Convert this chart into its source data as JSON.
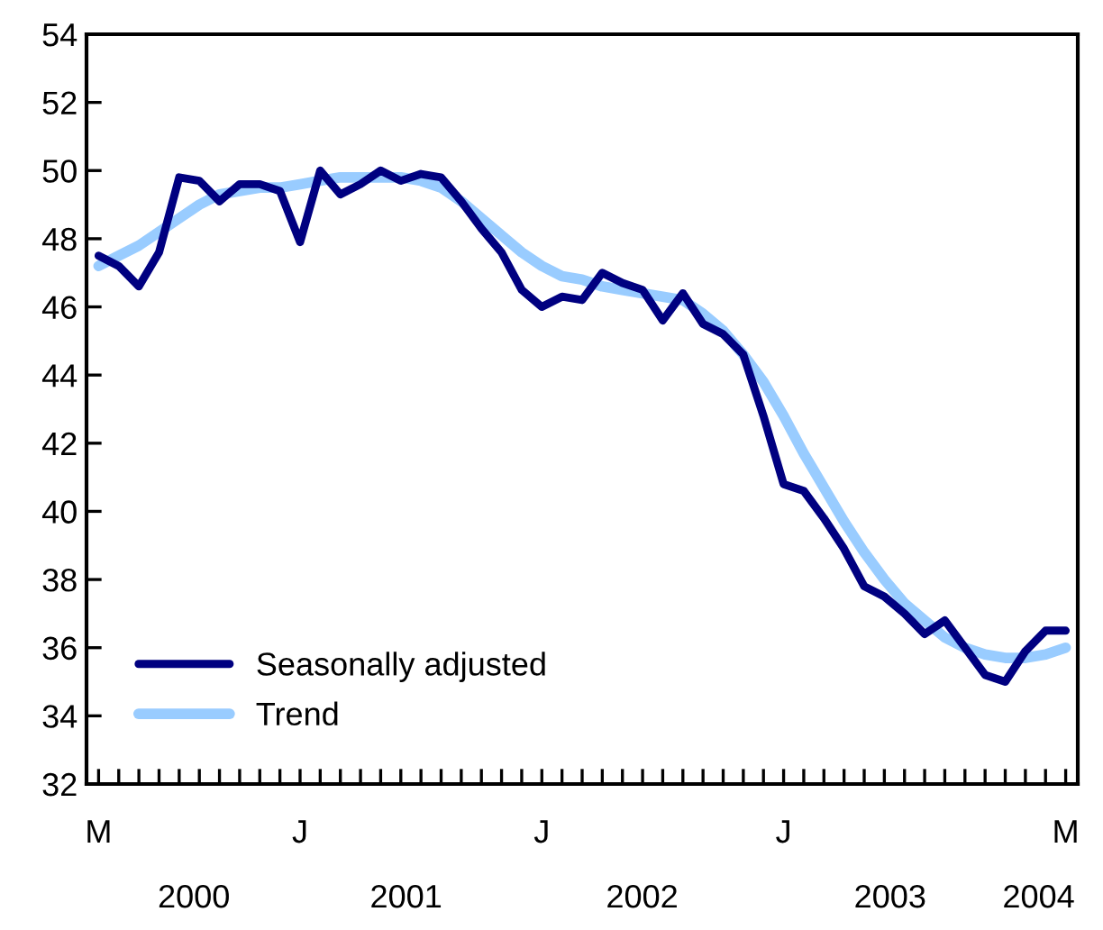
{
  "chart_data": {
    "type": "line",
    "categories": [
      "M",
      null,
      null,
      null,
      null,
      null,
      null,
      null,
      null,
      null,
      "J",
      null,
      null,
      null,
      null,
      null,
      null,
      null,
      null,
      null,
      null,
      null,
      "J",
      null,
      null,
      null,
      null,
      null,
      null,
      null,
      null,
      null,
      null,
      null,
      "J",
      null,
      null,
      null,
      null,
      null,
      null,
      null,
      null,
      null,
      null,
      null,
      null,
      null,
      "M"
    ],
    "series": [
      {
        "name": "Seasonally adjusted",
        "color": "#000080",
        "values": [
          47.5,
          47.2,
          46.6,
          47.6,
          49.8,
          49.7,
          49.1,
          49.6,
          49.6,
          49.4,
          47.9,
          50.0,
          49.3,
          49.6,
          50.0,
          49.7,
          49.9,
          49.8,
          49.1,
          48.3,
          47.6,
          46.5,
          46.0,
          46.3,
          46.2,
          47.0,
          46.7,
          46.5,
          45.6,
          46.4,
          45.5,
          45.2,
          44.6,
          42.8,
          40.8,
          40.6,
          39.8,
          38.9,
          37.8,
          37.5,
          37.0,
          36.4,
          36.8,
          36.0,
          35.2,
          35.0,
          35.9,
          36.5,
          36.5
        ]
      },
      {
        "name": "Trend",
        "color": "#99ccff",
        "values": [
          47.2,
          47.5,
          47.8,
          48.2,
          48.6,
          49.0,
          49.3,
          49.4,
          49.5,
          49.5,
          49.6,
          49.7,
          49.8,
          49.8,
          49.8,
          49.8,
          49.7,
          49.5,
          49.1,
          48.6,
          48.1,
          47.6,
          47.2,
          46.9,
          46.8,
          46.6,
          46.5,
          46.4,
          46.3,
          46.2,
          45.8,
          45.3,
          44.6,
          43.8,
          42.8,
          41.7,
          40.7,
          39.7,
          38.8,
          38.0,
          37.3,
          36.8,
          36.3,
          36.0,
          35.8,
          35.7,
          35.7,
          35.8,
          36.0
        ]
      }
    ],
    "x2lim": [
      "2000-02-14",
      "2004-03-19"
    ],
    "x2ticks": [
      {
        "value": "2000-07-25",
        "label": "2000"
      },
      {
        "value": "2001-06-10",
        "label": "2001"
      },
      {
        "value": "2002-06-01",
        "label": "2002"
      },
      {
        "value": "2003-06-10",
        "label": "2003"
      },
      {
        "value": "2004-01-20",
        "label": "2004"
      }
    ],
    "ylim": [
      32,
      54
    ],
    "yticks": [
      32,
      34,
      36,
      38,
      40,
      42,
      44,
      46,
      48,
      50,
      52,
      54
    ],
    "grid": false,
    "legend": "bottom left",
    "marker": "none",
    "line_style": "solid"
  }
}
